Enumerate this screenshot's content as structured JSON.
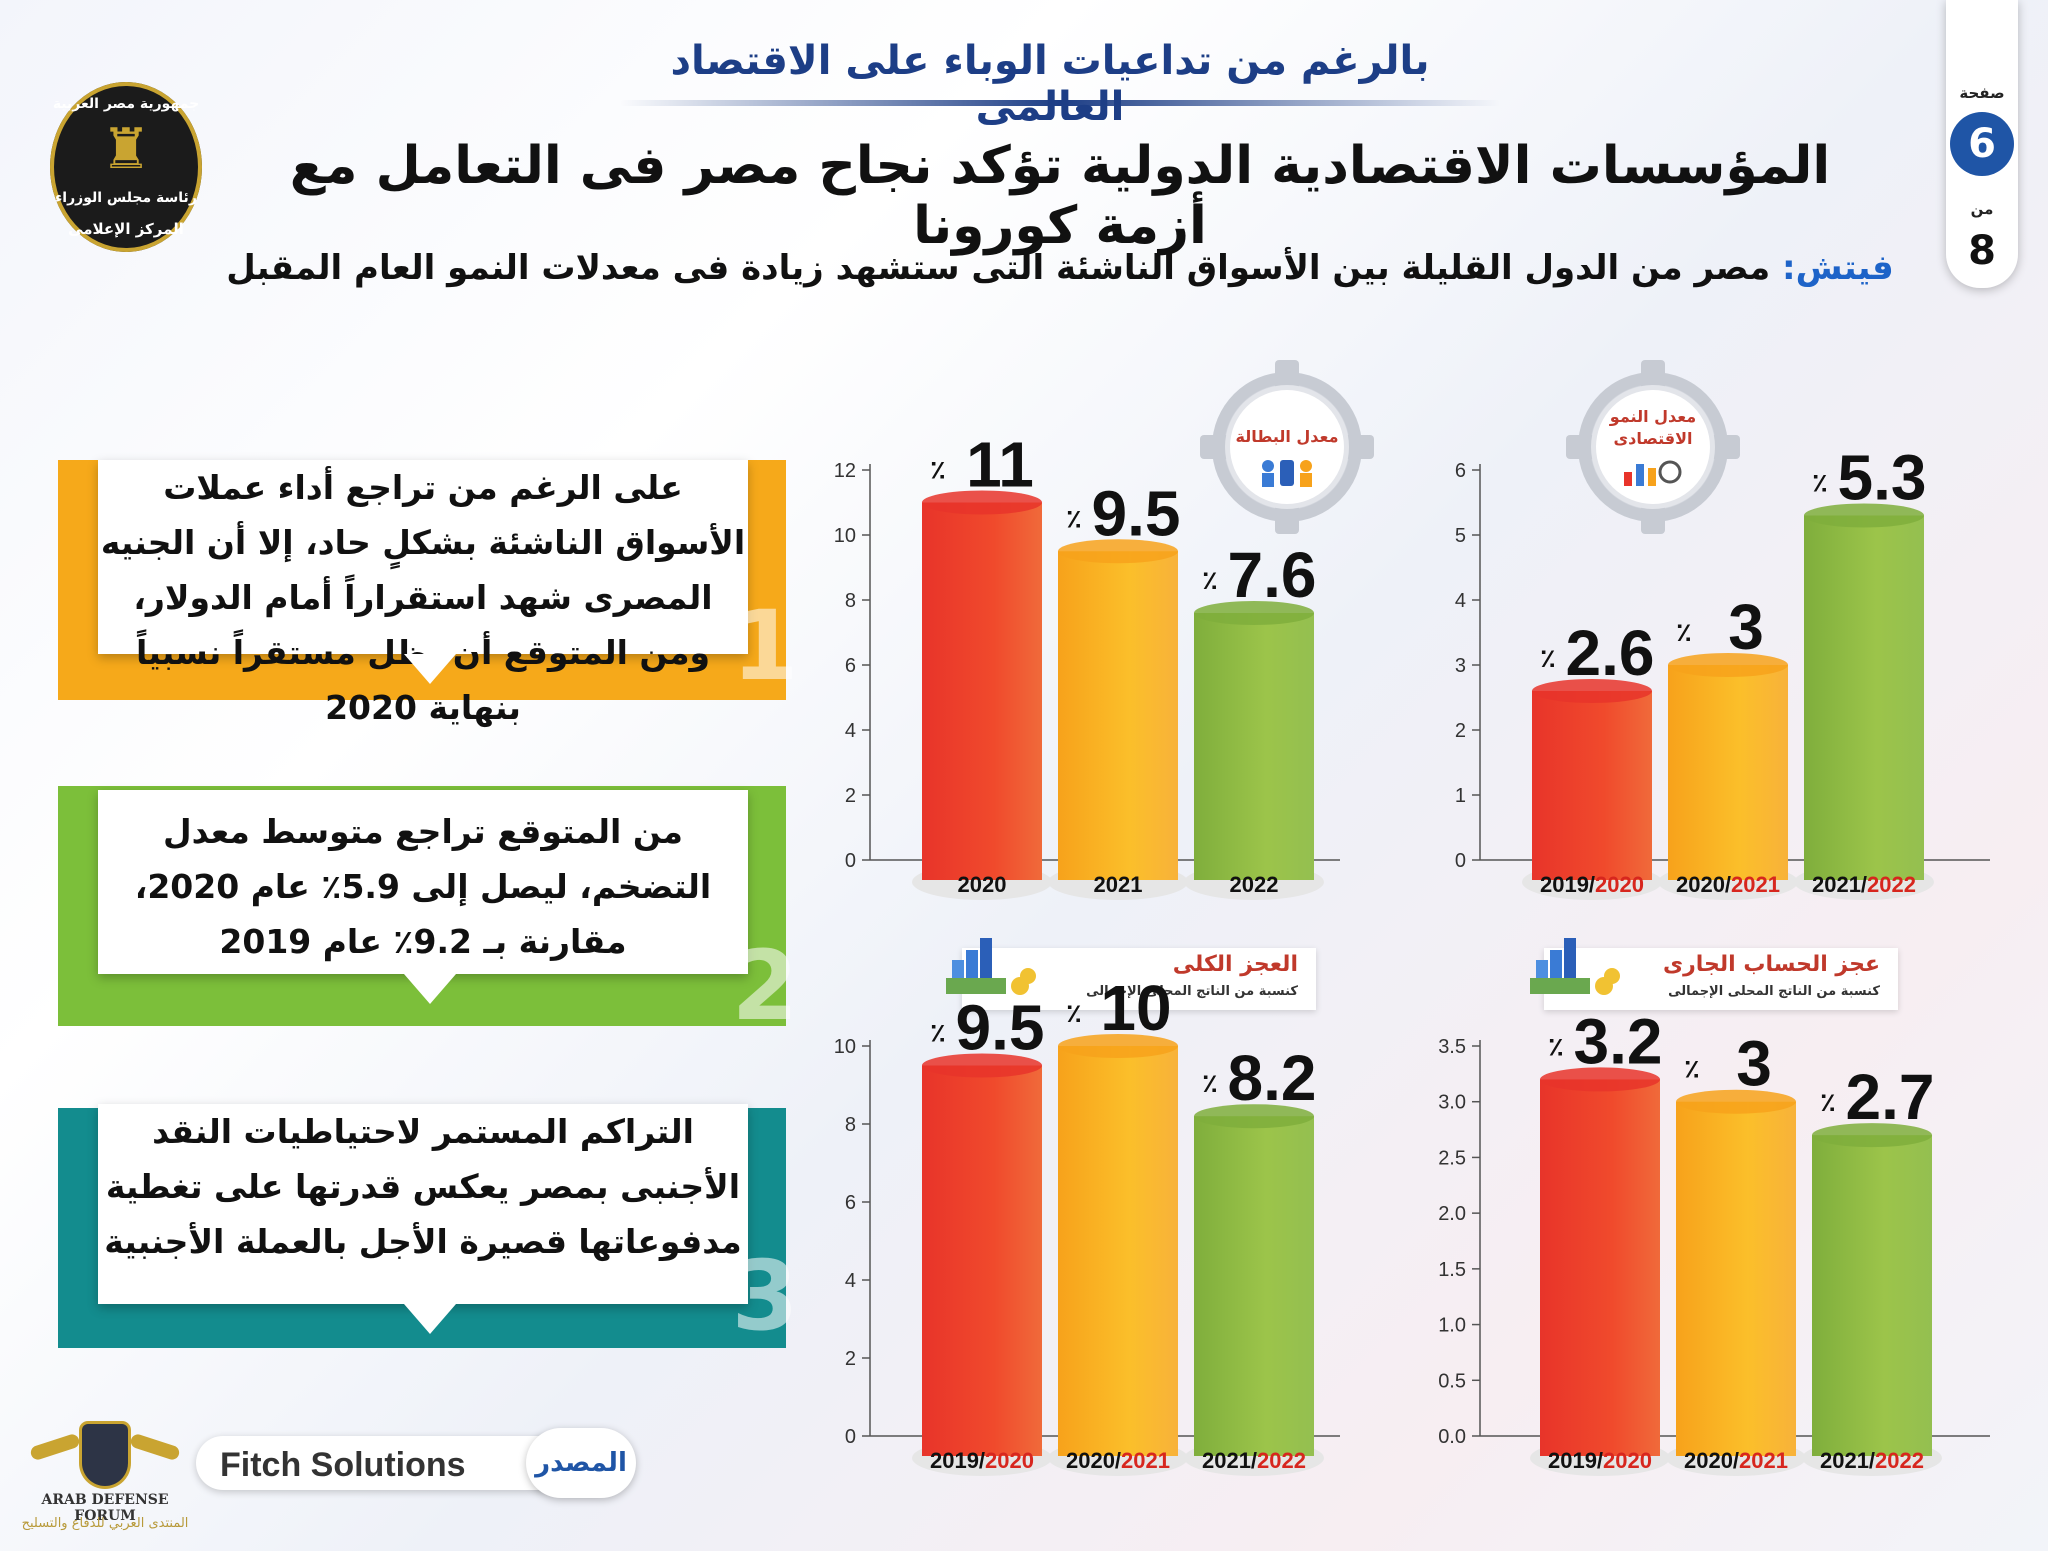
{
  "header": {
    "kicker": "بالرغم من تداعيات الوباء على الاقتصاد العالمى",
    "title": "المؤسسات الاقتصادية الدولية تؤكد نجاح مصر فى التعامل مع أزمة كورونا",
    "subtitle_source": "فيتش:",
    "subtitle_text": "مصر من الدول القليلة بين الأسواق الناشئة التى ستشهد زيادة فى معدلات النمو العام المقبل"
  },
  "page_badge": {
    "label_top": "صفحة",
    "page": "6",
    "label_mid": "من",
    "total": "8"
  },
  "logo": {
    "line1": "جمهورية مصر العربية",
    "line2": "رئاسة مجلس الوزراء",
    "line3": "المركز الإعلامى"
  },
  "points": [
    {
      "number": "1",
      "text": "على الرغم من تراجع أداء عملات الأسواق الناشئة بشكلٍ حاد، إلا أن الجنيه المصرى شهد استقراراً أمام الدولار، ومن المتوقع أن يظل مستقراً نسبياً بنهاية 2020",
      "color": "#f6a91a"
    },
    {
      "number": "2",
      "text": "من المتوقع تراجع متوسط معدل التضخم، ليصل إلى 5.9٪ عام 2020، مقارنة بـ 9.2٪ عام 2019",
      "color": "#7cbf3a"
    },
    {
      "number": "3",
      "text": "التراكم المستمر لاحتياطيات النقد الأجنبى بمصر يعكس قدرتها على تغطية مدفوعاتها قصيرة الأجل بالعملة الأجنبية",
      "color": "#138c8e"
    }
  ],
  "source": {
    "label": "المصدر",
    "name": "Fitch Solutions"
  },
  "forum": {
    "name_en": "ARAB DEFENSE FORUM",
    "name_ar": "المنتدى العربي للدفاع والتسليح"
  },
  "colors": {
    "red": "#e8342a",
    "orange": "#f7a21b",
    "green": "#7fae3c",
    "year_red": "#d7261e",
    "title_blue": "#1d3e86"
  },
  "chart_data": [
    {
      "type": "bar",
      "title": "معدل النمو الاقتصادى",
      "categories": [
        [
          "2019/",
          "2020"
        ],
        [
          "2020/",
          "2021"
        ],
        [
          "2021/",
          "2022"
        ]
      ],
      "values": [
        2.6,
        3,
        5.3
      ],
      "value_labels": [
        "2.6",
        "3",
        "5.3"
      ],
      "unit": "٪",
      "yticks": [
        "0",
        "1",
        "2",
        "3",
        "4",
        "5",
        "6"
      ],
      "ylim": [
        0,
        6
      ]
    },
    {
      "type": "bar",
      "title": "معدل البطالة",
      "categories": [
        [
          "",
          "2020"
        ],
        [
          "",
          "2021"
        ],
        [
          "",
          "2022"
        ]
      ],
      "values": [
        11,
        9.5,
        7.6
      ],
      "value_labels": [
        "11",
        "9.5",
        "7.6"
      ],
      "unit": "٪",
      "yticks": [
        "0",
        "2",
        "4",
        "6",
        "8",
        "10",
        "12"
      ],
      "ylim": [
        0,
        12
      ]
    },
    {
      "type": "bar",
      "title": "عجز الحساب الجارى",
      "subtitle": "كنسبة من الناتج المحلى الإجمالى",
      "categories": [
        [
          "2019/",
          "2020"
        ],
        [
          "2020/",
          "2021"
        ],
        [
          "2021/",
          "2022"
        ]
      ],
      "values": [
        3.2,
        3,
        2.7
      ],
      "value_labels": [
        "3.2",
        "3",
        "2.7"
      ],
      "unit": "٪",
      "yticks": [
        "0.0",
        "0.5",
        "1.0",
        "1.5",
        "2.0",
        "2.5",
        "3.0",
        "3.5"
      ],
      "ylim": [
        0,
        3.5
      ]
    },
    {
      "type": "bar",
      "title": "العجز الكلى",
      "subtitle": "كنسبة من الناتج المحلى الإجمالى",
      "categories": [
        [
          "2019/",
          "2020"
        ],
        [
          "2020/",
          "2021"
        ],
        [
          "2021/",
          "2022"
        ]
      ],
      "values": [
        9.5,
        10,
        8.2
      ],
      "value_labels": [
        "9.5",
        "10",
        "8.2"
      ],
      "unit": "٪",
      "yticks": [
        "0",
        "2",
        "4",
        "6",
        "8",
        "10"
      ],
      "ylim": [
        0,
        10
      ]
    }
  ]
}
